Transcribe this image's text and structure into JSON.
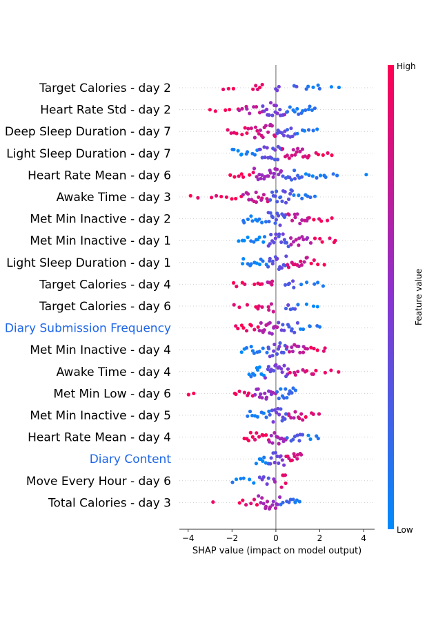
{
  "chart_data": {
    "type": "scatter",
    "subtype": "shap-beeswarm",
    "xlabel": "SHAP value (impact on model output)",
    "xlim": [
      -4.4,
      4.5
    ],
    "xticks": [
      -4,
      -2,
      0,
      2,
      4
    ],
    "xtick_labels": [
      "−4",
      "−2",
      "0",
      "2",
      "4"
    ],
    "colorbar": {
      "label": "Feature value",
      "high_label": "High",
      "low_label": "Low",
      "high_color": "#ff0052",
      "low_color": "#008bfb"
    },
    "features": [
      {
        "name": "Target Calories - day 2",
        "highlight": false,
        "min": -2.5,
        "max": 3.2,
        "spread": [
          [
            -2.4,
            -1.8,
            0.2,
            0.95
          ],
          [
            -1.1,
            -0.6,
            0.55,
            0.9
          ],
          [
            -0.1,
            0.2,
            0.4,
            0.35
          ],
          [
            0.8,
            1.0,
            0.35,
            0.25
          ],
          [
            1.3,
            2.1,
            0.35,
            0.1
          ],
          [
            2.3,
            3.2,
            0.1,
            0.05
          ]
        ]
      },
      {
        "name": "Heart Rate Std - day 2",
        "highlight": false,
        "min": -3.1,
        "max": 1.8,
        "spread": [
          [
            -3.1,
            -1.7,
            0.2,
            0.95
          ],
          [
            -1.7,
            -0.6,
            0.5,
            0.7
          ],
          [
            -0.6,
            0.4,
            1.0,
            0.45
          ],
          [
            0.4,
            1.8,
            0.65,
            0.12
          ]
        ]
      },
      {
        "name": "Deep Sleep Duration - day 7",
        "highlight": false,
        "min": -2.2,
        "max": 1.9,
        "spread": [
          [
            -2.2,
            -1.0,
            0.5,
            0.9
          ],
          [
            -1.0,
            0.0,
            1.0,
            0.75
          ],
          [
            0.0,
            0.9,
            0.85,
            0.3
          ],
          [
            0.9,
            1.9,
            0.35,
            0.1
          ]
        ]
      },
      {
        "name": "Light Sleep Duration - day 7",
        "highlight": false,
        "min": -2.1,
        "max": 2.7,
        "spread": [
          [
            -2.1,
            -0.8,
            0.5,
            0.05
          ],
          [
            -0.8,
            0.3,
            1.0,
            0.35
          ],
          [
            0.3,
            1.5,
            0.75,
            0.8
          ],
          [
            1.5,
            2.7,
            0.3,
            0.95
          ]
        ]
      },
      {
        "name": "Heart Rate Mean - day 6",
        "highlight": false,
        "min": -2.2,
        "max": 4.2,
        "spread": [
          [
            -2.2,
            -1.0,
            0.35,
            0.95
          ],
          [
            -1.0,
            0.3,
            1.0,
            0.6
          ],
          [
            0.3,
            1.2,
            0.7,
            0.25
          ],
          [
            1.2,
            2.8,
            0.35,
            0.1
          ],
          [
            4.1,
            4.2,
            0.05,
            0.05
          ]
        ]
      },
      {
        "name": "Awake Time - day 3",
        "highlight": false,
        "min": -4.0,
        "max": 1.8,
        "spread": [
          [
            -4.0,
            -3.5,
            0.1,
            1.0
          ],
          [
            -3.0,
            -1.5,
            0.3,
            0.95
          ],
          [
            -1.5,
            -0.3,
            0.75,
            0.75
          ],
          [
            -0.3,
            0.8,
            1.0,
            0.3
          ],
          [
            0.8,
            1.8,
            0.4,
            0.12
          ]
        ]
      },
      {
        "name": "Met Min Inactive - day 2",
        "highlight": false,
        "min": -1.6,
        "max": 2.6,
        "spread": [
          [
            -1.6,
            -0.4,
            0.55,
            0.05
          ],
          [
            -0.4,
            0.5,
            1.0,
            0.3
          ],
          [
            0.5,
            1.6,
            0.7,
            0.75
          ],
          [
            1.6,
            2.6,
            0.3,
            0.95
          ]
        ]
      },
      {
        "name": "Met Min Inactive - day 1",
        "highlight": false,
        "min": -1.7,
        "max": 2.9,
        "spread": [
          [
            -1.7,
            -0.4,
            0.55,
            0.05
          ],
          [
            -0.4,
            0.6,
            1.0,
            0.35
          ],
          [
            0.6,
            1.6,
            0.7,
            0.65
          ],
          [
            1.6,
            2.9,
            0.3,
            0.95
          ]
        ]
      },
      {
        "name": "Light Sleep Duration - day 1",
        "highlight": false,
        "min": -1.6,
        "max": 2.3,
        "spread": [
          [
            -1.6,
            -0.4,
            0.6,
            0.05
          ],
          [
            -0.4,
            0.5,
            1.0,
            0.35
          ],
          [
            0.5,
            1.5,
            0.75,
            0.8
          ],
          [
            1.5,
            2.3,
            0.3,
            0.95
          ]
        ]
      },
      {
        "name": "Target Calories - day 4",
        "highlight": false,
        "min": -2.1,
        "max": 2.3,
        "spread": [
          [
            -2.1,
            -1.3,
            0.25,
            0.95
          ],
          [
            -1.0,
            -0.6,
            0.45,
            0.9
          ],
          [
            -0.4,
            -0.1,
            0.8,
            0.75
          ],
          [
            0.4,
            0.9,
            0.55,
            0.3
          ],
          [
            1.0,
            2.3,
            0.2,
            0.1
          ]
        ]
      },
      {
        "name": "Target Calories - day 6",
        "highlight": false,
        "min": -2.0,
        "max": 2.0,
        "spread": [
          [
            -2.0,
            -1.3,
            0.25,
            0.95
          ],
          [
            -1.0,
            -0.6,
            0.45,
            0.9
          ],
          [
            -0.4,
            -0.1,
            0.8,
            0.75
          ],
          [
            0.4,
            0.9,
            0.55,
            0.3
          ],
          [
            1.0,
            2.0,
            0.2,
            0.1
          ]
        ]
      },
      {
        "name": "Diary Submission Frequency",
        "highlight": true,
        "min": -1.9,
        "max": 2.1,
        "spread": [
          [
            -1.9,
            -0.8,
            0.55,
            0.95
          ],
          [
            -0.8,
            0.1,
            1.0,
            0.65
          ],
          [
            0.1,
            1.0,
            0.75,
            0.3
          ],
          [
            1.0,
            2.1,
            0.3,
            0.1
          ]
        ]
      },
      {
        "name": "Met Min Inactive - day 4",
        "highlight": false,
        "min": -1.6,
        "max": 2.4,
        "spread": [
          [
            -1.6,
            -0.4,
            0.55,
            0.05
          ],
          [
            -0.4,
            0.5,
            1.0,
            0.35
          ],
          [
            0.5,
            1.5,
            0.75,
            0.7
          ],
          [
            1.5,
            2.4,
            0.3,
            0.95
          ]
        ]
      },
      {
        "name": "Awake Time - day 4",
        "highlight": false,
        "min": -1.3,
        "max": 2.9,
        "spread": [
          [
            -1.3,
            -0.5,
            0.75,
            0.05
          ],
          [
            -0.5,
            0.6,
            1.0,
            0.4
          ],
          [
            0.6,
            1.8,
            0.5,
            0.85
          ],
          [
            1.8,
            2.9,
            0.2,
            0.95
          ]
        ]
      },
      {
        "name": "Met Min Low - day 6",
        "highlight": false,
        "min": -4.1,
        "max": 0.9,
        "spread": [
          [
            -4.1,
            -3.5,
            0.1,
            1.0
          ],
          [
            -2.0,
            -1.0,
            0.45,
            0.9
          ],
          [
            -1.0,
            0.0,
            0.9,
            0.55
          ],
          [
            0.0,
            0.9,
            0.85,
            0.15
          ]
        ]
      },
      {
        "name": "Met Min Inactive - day 5",
        "highlight": false,
        "min": -1.3,
        "max": 2.0,
        "spread": [
          [
            -1.3,
            -0.3,
            0.55,
            0.05
          ],
          [
            -0.3,
            0.5,
            1.0,
            0.35
          ],
          [
            0.5,
            1.3,
            0.75,
            0.75
          ],
          [
            1.3,
            2.0,
            0.3,
            0.95
          ]
        ]
      },
      {
        "name": "Heart Rate Mean - day 4",
        "highlight": false,
        "min": -1.5,
        "max": 2.1,
        "spread": [
          [
            -1.5,
            -0.3,
            0.65,
            0.95
          ],
          [
            -0.3,
            0.5,
            1.0,
            0.6
          ],
          [
            0.5,
            1.3,
            0.6,
            0.25
          ],
          [
            1.3,
            2.1,
            0.3,
            0.08
          ]
        ]
      },
      {
        "name": "Diary Content",
        "highlight": true,
        "min": -0.9,
        "max": 1.2,
        "spread": [
          [
            -0.9,
            -0.3,
            0.75,
            0.1
          ],
          [
            -0.3,
            0.4,
            1.0,
            0.4
          ],
          [
            0.4,
            1.2,
            0.85,
            0.85
          ]
        ]
      },
      {
        "name": "Move Every Hour - day 6",
        "highlight": false,
        "min": -2.1,
        "max": 0.5,
        "spread": [
          [
            -2.1,
            -0.9,
            0.3,
            0.05
          ],
          [
            -0.8,
            -0.3,
            0.6,
            0.35
          ],
          [
            -0.1,
            0.0,
            0.5,
            0.6
          ],
          [
            0.2,
            0.5,
            1.0,
            0.95
          ]
        ]
      },
      {
        "name": "Total Calories - day 3",
        "highlight": false,
        "min": -2.9,
        "max": 1.1,
        "spread": [
          [
            -2.9,
            -2.6,
            0.05,
            0.95
          ],
          [
            -1.7,
            -0.8,
            0.4,
            0.9
          ],
          [
            -0.8,
            0.2,
            1.0,
            0.6
          ],
          [
            0.2,
            1.1,
            0.6,
            0.15
          ]
        ]
      }
    ]
  }
}
